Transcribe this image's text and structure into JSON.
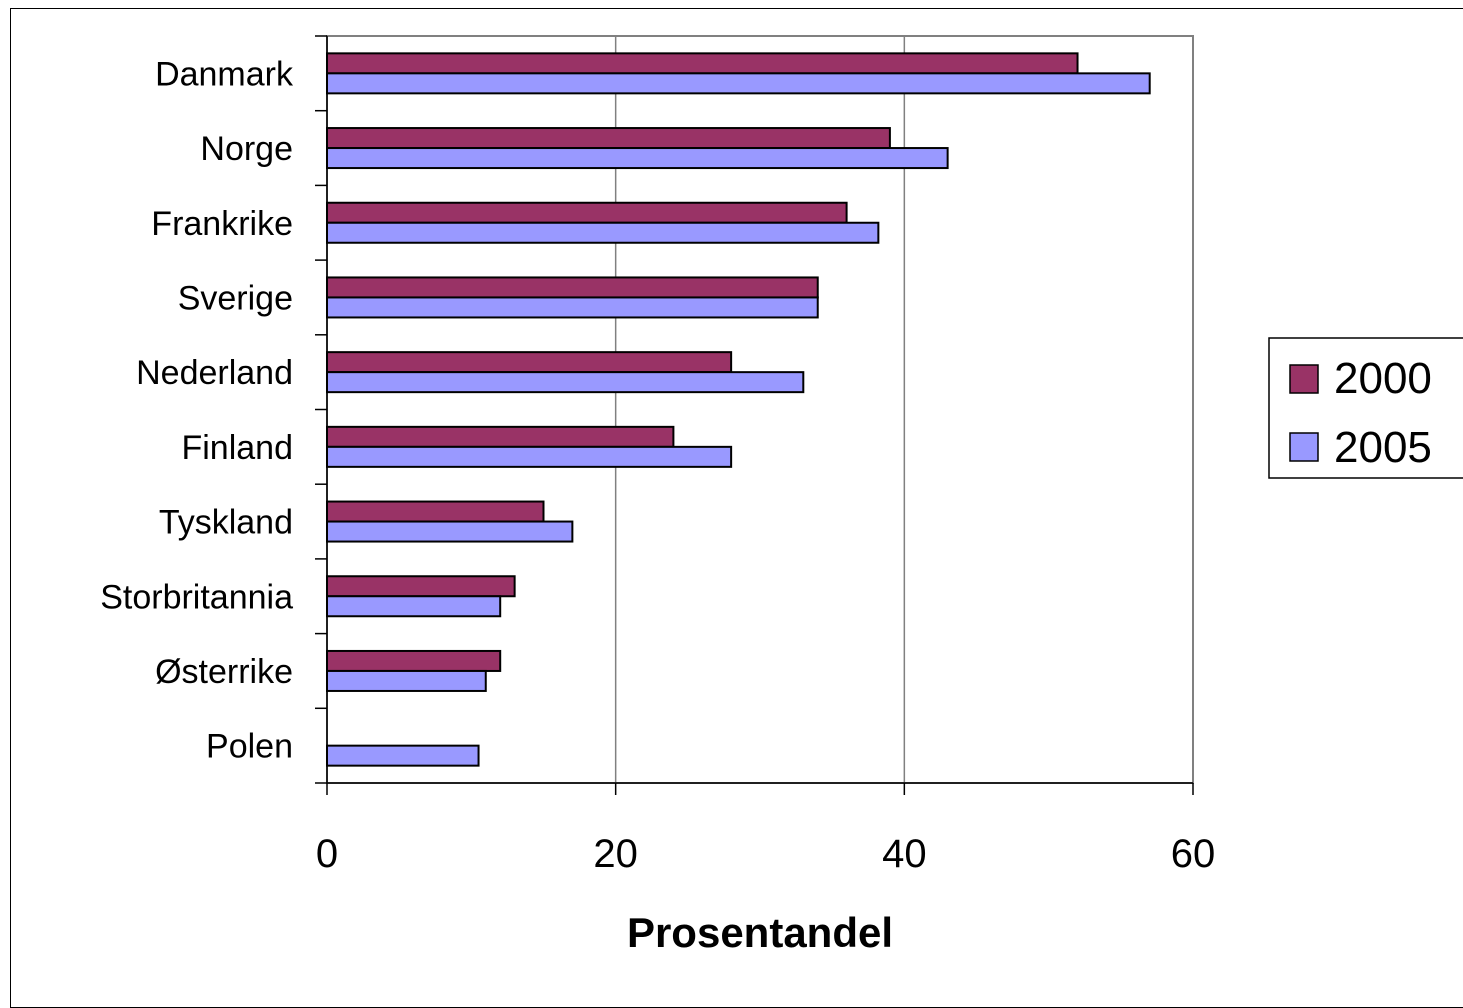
{
  "chart_data": {
    "type": "bar",
    "orientation": "horizontal",
    "categories": [
      "Danmark",
      "Norge",
      "Frankrike",
      "Sverige",
      "Nederland",
      "Finland",
      "Tyskland",
      "Storbritannia",
      "Østerrike",
      "Polen"
    ],
    "series": [
      {
        "name": "2000",
        "color": "#993366",
        "values": [
          52,
          39,
          36,
          34,
          28,
          24,
          15,
          13,
          12,
          null
        ]
      },
      {
        "name": "2005",
        "color": "#9999ff",
        "values": [
          57,
          43,
          38.2,
          34,
          33,
          28,
          17,
          12,
          11,
          10.5
        ]
      }
    ],
    "title": "",
    "xlabel": "Prosentandel",
    "ylabel": "",
    "xlim": [
      0,
      60
    ],
    "x_ticks": [
      0,
      20,
      40,
      60
    ],
    "x_tick_labels": [
      "0",
      "20",
      "40",
      "60"
    ],
    "grid": "vertical major gridlines",
    "legend": "right"
  }
}
